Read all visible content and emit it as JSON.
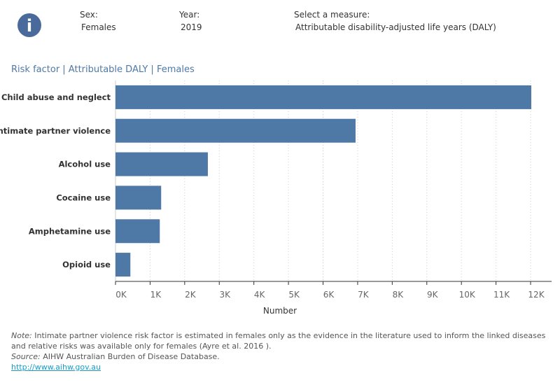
{
  "header": {
    "info_icon": "info-circle-icon",
    "sex_label": "Sex:",
    "sex_value": "Females",
    "year_label": "Year:",
    "year_value": "2019",
    "measure_label": "Select a measure:",
    "measure_value": "Attributable disability-adjusted life years (DALY)"
  },
  "chart_data": {
    "type": "bar",
    "orientation": "horizontal",
    "title": "Risk factor | Attributable DALY | Females",
    "xlabel": "Number",
    "categories": [
      "Child abuse and neglect",
      "Intimate partner violence",
      "Alcohol use",
      "Cocaine use",
      "Amphetamine use",
      "Opioid use"
    ],
    "values": [
      12020,
      6940,
      2670,
      1320,
      1280,
      430
    ],
    "xlim": [
      0,
      12600
    ],
    "ticks": [
      0,
      1000,
      2000,
      3000,
      4000,
      5000,
      6000,
      7000,
      8000,
      9000,
      10000,
      11000,
      12000
    ],
    "tick_labels": [
      "0K",
      "1K",
      "2K",
      "3K",
      "4K",
      "5K",
      "6K",
      "7K",
      "8K",
      "9K",
      "10K",
      "11K",
      "12K"
    ],
    "grid": "vertical dotted",
    "bar_color": "#4e79a7"
  },
  "footer": {
    "note_label": "Note:",
    "note_text": " Intimate partner violence risk factor is estimated in females only as the evidence in the literature used to inform the linked diseases and relative risks was available only for females (Ayre et al. 2016 ).",
    "source_label": "Source:",
    "source_text": " AIHW Australian Burden of Disease Database.",
    "link": "http://www.aihw.gov.au"
  }
}
